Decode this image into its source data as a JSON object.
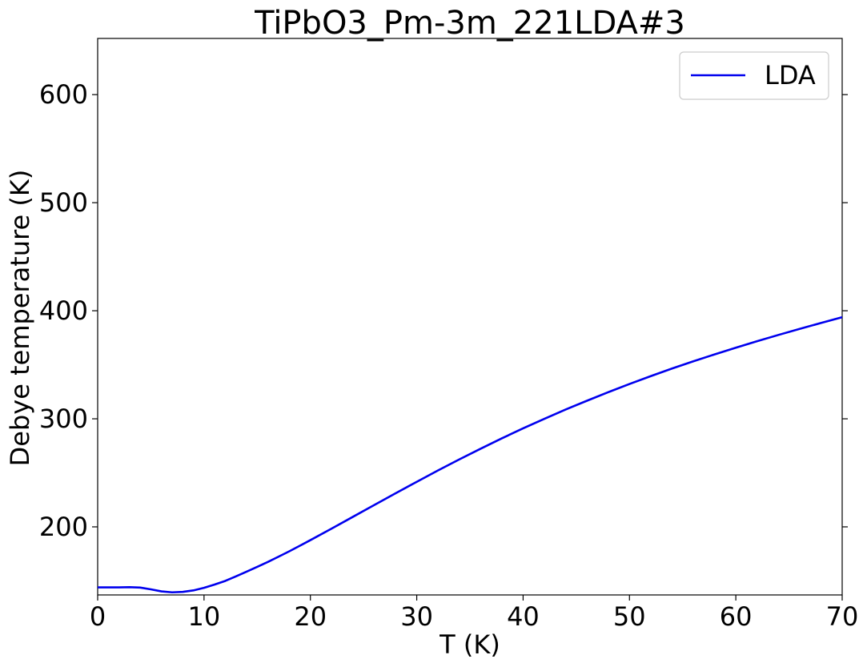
{
  "chart_data": {
    "type": "line",
    "title": "TiPbO3_Pm-3m_221LDA#3",
    "xlabel": "T (K)",
    "ylabel": "Debye temperature (K)",
    "xlim": [
      0,
      70
    ],
    "ylim": [
      137,
      652
    ],
    "xticks": [
      0,
      10,
      20,
      30,
      40,
      50,
      60,
      70
    ],
    "yticks": [
      200,
      300,
      400,
      500,
      600
    ],
    "grid": false,
    "legend": {
      "position": "upper right",
      "entries": [
        "LDA"
      ]
    },
    "series": [
      {
        "name": "LDA",
        "color": "#0000ee",
        "x": [
          0,
          1,
          2,
          3,
          4,
          5,
          6,
          7,
          8,
          9,
          10,
          11,
          12,
          13,
          14,
          15,
          16,
          17,
          18,
          19,
          20,
          22,
          24,
          26,
          28,
          30,
          32,
          34,
          36,
          38,
          40,
          42,
          44,
          46,
          48,
          50,
          52,
          54,
          56,
          58,
          60,
          62,
          64,
          66,
          68,
          70
        ],
        "y": [
          144,
          144,
          144,
          144.2,
          143.8,
          142.2,
          140.3,
          139.4,
          139.8,
          141.2,
          143.6,
          146.6,
          150,
          154.2,
          158.5,
          163,
          167.5,
          172.4,
          177.3,
          182.5,
          187.7,
          198.4,
          209.3,
          220.2,
          231,
          241.7,
          252.2,
          262.4,
          272.3,
          281.9,
          291.2,
          300,
          308.6,
          316.7,
          324.6,
          332.2,
          339.5,
          346.5,
          353.2,
          359.6,
          365.8,
          371.8,
          377.6,
          383.2,
          388.7,
          394
        ]
      }
    ]
  }
}
